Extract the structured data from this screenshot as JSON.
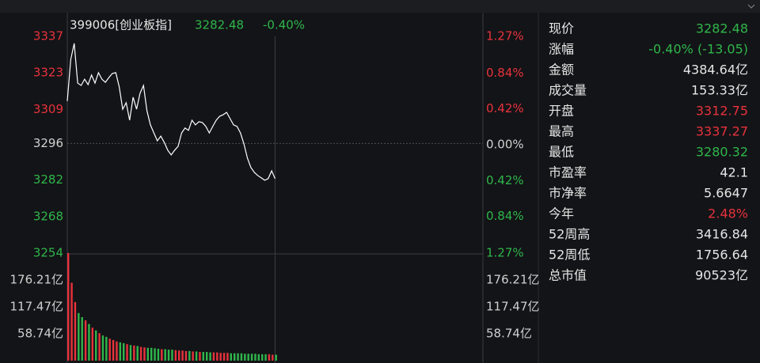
{
  "chart_data": [
    {
      "type": "line",
      "title": "399006[创业板指]",
      "header_price": "3282.48",
      "header_change": "-0.40%",
      "header_price_color": "#2fb64b",
      "x": [
        0,
        2,
        4,
        6,
        8,
        10,
        12,
        14,
        16,
        18,
        20,
        22,
        24,
        26,
        28,
        30,
        32,
        34,
        36,
        38,
        40,
        42,
        44,
        46,
        48,
        50,
        52,
        54,
        56,
        58,
        60,
        62,
        64,
        66,
        68,
        70,
        72,
        74,
        76,
        78,
        80,
        82,
        84,
        86,
        88,
        90,
        92,
        94,
        96,
        98,
        100,
        102,
        104,
        106,
        108,
        110,
        112,
        114,
        116,
        118,
        120
      ],
      "xlim": [
        0,
        240
      ],
      "series": [
        {
          "color": "#ffffff",
          "values": [
            3312.2,
            3328.2,
            3334.3,
            3319.1,
            3318.2,
            3320.6,
            3318.5,
            3322.2,
            3319.1,
            3323.1,
            3320.6,
            3319.4,
            3321.2,
            3322.8,
            3323.1,
            3317.6,
            3309.1,
            3311.6,
            3304.9,
            3313.7,
            3309.1,
            3315.2,
            3318.2,
            3308.5,
            3303.1,
            3300.0,
            3297.0,
            3298.8,
            3296.4,
            3293.4,
            3291.6,
            3293.4,
            3294.9,
            3300.0,
            3301.9,
            3301.0,
            3304.9,
            3303.1,
            3304.3,
            3304.0,
            3302.5,
            3300.0,
            3302.5,
            3304.9,
            3306.4,
            3307.0,
            3307.9,
            3305.5,
            3303.1,
            3302.5,
            3300.0,
            3295.8,
            3290.4,
            3286.8,
            3284.9,
            3283.7,
            3282.8,
            3281.9,
            3282.5,
            3285.5,
            3282.5
          ]
        }
      ],
      "ylim": [
        3254,
        3337
      ],
      "yticks": [
        3337,
        3323,
        3309,
        3296,
        3282,
        3268,
        3254
      ],
      "y2lim": [
        -1.27,
        1.27
      ],
      "y2ticks": [
        {
          "value": 1.27,
          "label": "1.27%"
        },
        {
          "value": 0.84,
          "label": "0.84%"
        },
        {
          "value": 0.42,
          "label": "0.42%"
        },
        {
          "value": 0,
          "label": "0.00%"
        },
        {
          "value": -0.42,
          "label": "0.42%"
        },
        {
          "value": -0.84,
          "label": "0.84%"
        },
        {
          "value": -1.27,
          "label": "1.27%"
        }
      ],
      "up_color": "#e8323c",
      "down_color": "#2fb64b",
      "flat_color": "#d0d0d0"
    },
    {
      "type": "bar",
      "x": [
        0,
        2,
        4,
        6,
        8,
        10,
        12,
        14,
        16,
        18,
        20,
        22,
        24,
        26,
        28,
        30,
        32,
        34,
        36,
        38,
        40,
        42,
        44,
        46,
        48,
        50,
        52,
        54,
        56,
        58,
        60,
        62,
        64,
        66,
        68,
        70,
        72,
        74,
        76,
        78,
        80,
        82,
        84,
        86,
        88,
        90,
        92,
        94,
        96,
        98,
        100,
        102,
        104,
        106,
        108,
        110,
        112,
        114,
        116,
        118,
        120
      ],
      "xlim": [
        0,
        240
      ],
      "values": [
        235,
        170,
        128,
        104,
        95,
        88,
        80,
        72,
        66,
        60,
        55,
        52,
        48,
        45,
        42,
        40,
        38,
        36,
        34,
        33,
        32,
        30,
        29,
        28,
        28,
        27,
        26,
        25,
        25,
        24,
        24,
        23,
        22,
        22,
        21,
        21,
        20,
        20,
        19,
        19,
        19,
        18,
        18,
        18,
        17,
        17,
        17,
        16,
        16,
        16,
        16,
        15,
        15,
        15,
        15,
        14,
        14,
        14,
        14,
        13,
        13
      ],
      "ylim": [
        0,
        234.96
      ],
      "yticks": [
        {
          "value": 176.21,
          "label": "176.21亿"
        },
        {
          "value": 117.47,
          "label": "117.47亿"
        },
        {
          "value": 58.74,
          "label": "58.74亿"
        }
      ]
    }
  ],
  "quote_panel": {
    "rows": [
      {
        "label": "现价",
        "value": "3282.48",
        "color": "#2fb64b"
      },
      {
        "label": "涨幅",
        "value": "-0.40% (-13.05)",
        "color": "#2fb64b"
      },
      {
        "label": "金额",
        "value": "4384.64亿",
        "color": "#e6e6e6"
      },
      {
        "label": "成交量",
        "value": "153.33亿",
        "color": "#e6e6e6"
      },
      {
        "label": "开盘",
        "value": "3312.75",
        "color": "#e8323c"
      },
      {
        "label": "最高",
        "value": "3337.27",
        "color": "#e8323c"
      },
      {
        "label": "最低",
        "value": "3280.32",
        "color": "#2fb64b"
      },
      {
        "label": "市盈率",
        "value": "42.1",
        "color": "#e6e6e6"
      },
      {
        "label": "市净率",
        "value": "5.6647",
        "color": "#e6e6e6"
      },
      {
        "label": "今年",
        "value": "2.48%",
        "color": "#e8323c"
      },
      {
        "label": "52周高",
        "value": "3416.84",
        "color": "#e6e6e6"
      },
      {
        "label": "52周低",
        "value": "1756.64",
        "color": "#e6e6e6"
      },
      {
        "label": "总市值",
        "value": "90523亿",
        "color": "#e6e6e6"
      }
    ]
  }
}
